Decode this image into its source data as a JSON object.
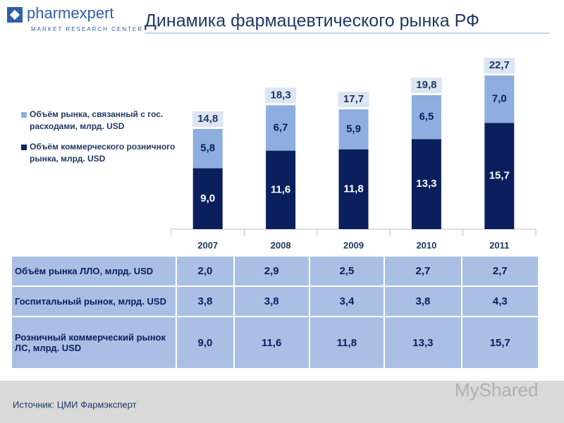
{
  "header": {
    "logo": "pharmexpert",
    "logo_sub": "MARKET RESEARCH CENTER",
    "title": "Динамика фармацевтического рынка РФ"
  },
  "chart_data": {
    "type": "bar",
    "stacked": true,
    "categories": [
      "2007",
      "2008",
      "2009",
      "2010",
      "2011"
    ],
    "series": [
      {
        "name": "Объём коммерческого розничного рынка, млрд. USD",
        "color": "#0b1f5e",
        "values": [
          9.0,
          11.6,
          11.8,
          13.3,
          15.7
        ],
        "value_labels": [
          "9,0",
          "11,6",
          "11,8",
          "13,3",
          "15,7"
        ]
      },
      {
        "name": "Объём рынка, связанный с гос. расходами, млрд. USD",
        "color": "#8eaee0",
        "values": [
          5.8,
          6.7,
          5.9,
          6.5,
          7.0
        ],
        "value_labels": [
          "5,8",
          "6,7",
          "5,9",
          "6,5",
          "7,0"
        ]
      }
    ],
    "totals": [
      14.8,
      18.3,
      17.7,
      19.8,
      22.7
    ],
    "total_labels": [
      "14,8",
      "18,3",
      "17,7",
      "19,8",
      "22,7"
    ],
    "ylim": [
      0,
      25
    ]
  },
  "table": {
    "rows": [
      [
        "Объём рынка ЛЛО, млрд. USD",
        "2,0",
        "2,9",
        "2,5",
        "2,7",
        "2,7"
      ],
      [
        "Госпитальный рынок, млрд. USD",
        "3,8",
        "3,8",
        "3,4",
        "3,8",
        "4,3"
      ],
      [
        "Розничный коммерческий рынок ЛС, млрд. USD",
        "9,0",
        "11,6",
        "11,8",
        "13,3",
        "15,7"
      ]
    ]
  },
  "footer": {
    "source": "Источник: ЦМИ Фармэксперт",
    "watermark": "MyShared"
  }
}
